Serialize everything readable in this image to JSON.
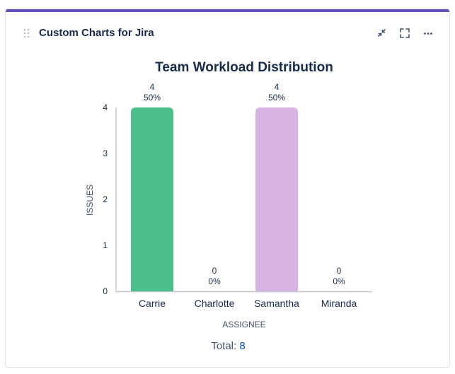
{
  "widget": {
    "title": "Custom Charts for Jira",
    "accent_color": "#6554c0",
    "actions": [
      {
        "icon": "minimize-icon"
      },
      {
        "icon": "fullscreen-icon"
      },
      {
        "icon": "more-options-icon"
      }
    ]
  },
  "chart_data": {
    "type": "bar",
    "title": "Team Workload Distribution",
    "xlabel": "ASSIGNEE",
    "ylabel": "ISSUES",
    "categories": [
      "Carrie",
      "Charlotte",
      "Samantha",
      "Miranda"
    ],
    "values": [
      4,
      0,
      4,
      0
    ],
    "percent_labels": [
      "50%",
      "0%",
      "50%",
      "0%"
    ],
    "colors": [
      "#4bbf8b",
      "#4bbf8b",
      "#d6b3e2",
      "#d6b3e2"
    ],
    "yticks": [
      0,
      1,
      2,
      3,
      4
    ],
    "ylim": [
      0,
      4
    ],
    "grid": false,
    "legend": "none"
  },
  "footer": {
    "total_label": "Total:",
    "total_value": "8"
  }
}
